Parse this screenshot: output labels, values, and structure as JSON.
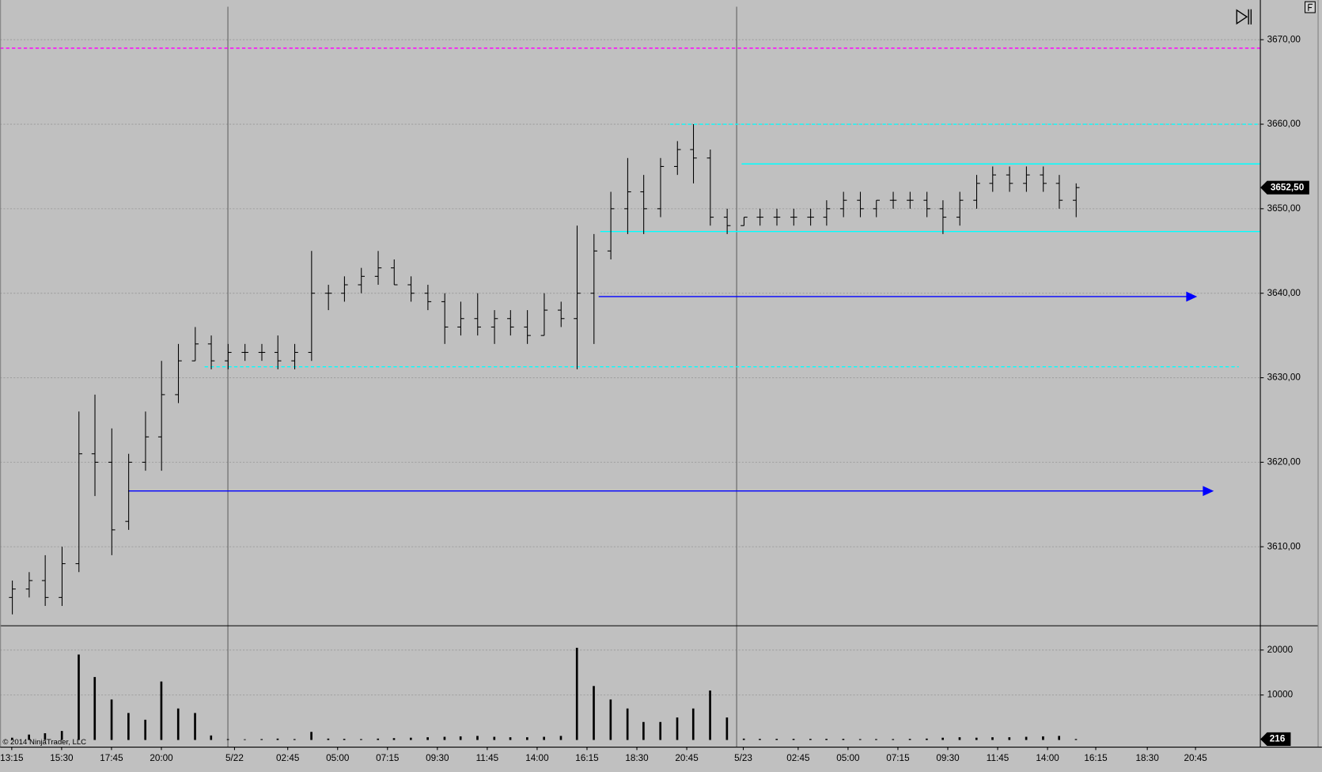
{
  "chart_data": {
    "type": "ohlc",
    "color": "#000000",
    "x": [
      0,
      1,
      2,
      3,
      4,
      5,
      6,
      7,
      8,
      9,
      10,
      11,
      12,
      13,
      14,
      15,
      16,
      17,
      18,
      19,
      20,
      21,
      22,
      23,
      24,
      25,
      26,
      27,
      28,
      29,
      30,
      31,
      32,
      33,
      34,
      35,
      36,
      37,
      38,
      39,
      40,
      41,
      42,
      43,
      44,
      45,
      46,
      47,
      48,
      49,
      50,
      51,
      52,
      53,
      54,
      55,
      56,
      57,
      58,
      59,
      60,
      61,
      62,
      63,
      64
    ],
    "open": [
      3604,
      3605,
      3606,
      3604,
      3608,
      3621,
      3620,
      3613,
      3620,
      3623,
      3628,
      3632,
      3634,
      3632,
      3633,
      3633,
      3633,
      3632,
      3633,
      3640,
      3640,
      3641,
      3642,
      3643,
      3641,
      3640,
      3639,
      3636,
      3637,
      3636,
      3637,
      3636,
      3635,
      3638,
      3637,
      3640,
      3645,
      3650,
      3652,
      3650,
      3655,
      3657,
      3656,
      3649,
      3648,
      3649,
      3649,
      3649,
      3649,
      3649,
      3650,
      3651,
      3650,
      3651,
      3651,
      3651,
      3650,
      3649,
      3651,
      3653,
      3654,
      3653,
      3654,
      3653,
      3651
    ],
    "high": [
      3606,
      3607,
      3609,
      3610,
      3626,
      3628,
      3624,
      3621,
      3626,
      3632,
      3634,
      3636,
      3635,
      3634,
      3634,
      3634,
      3635,
      3634,
      3645,
      3641,
      3642,
      3643,
      3645,
      3644,
      3642,
      3641,
      3640,
      3639,
      3640,
      3638,
      3638,
      3638,
      3640,
      3639,
      3648,
      3647,
      3652,
      3656,
      3654,
      3656,
      3658,
      3660,
      3657,
      3650,
      3649,
      3650,
      3650,
      3650,
      3650,
      3651,
      3652,
      3652,
      3651,
      3652,
      3652,
      3652,
      3651,
      3652,
      3654,
      3655,
      3655,
      3655,
      3655,
      3654,
      3653
    ],
    "low": [
      3602,
      3604,
      3603,
      3603,
      3607,
      3616,
      3609,
      3612,
      3619,
      3619,
      3627,
      3632,
      3631,
      3631,
      3632,
      3632,
      3631,
      3631,
      3632,
      3638,
      3639,
      3640,
      3641,
      3641,
      3639,
      3638,
      3634,
      3635,
      3635,
      3634,
      3635,
      3634,
      3635,
      3636,
      3631,
      3634,
      3644,
      3647,
      3647,
      3649,
      3654,
      3653,
      3648,
      3647,
      3648,
      3648,
      3648,
      3648,
      3648,
      3648,
      3649,
      3649,
      3649,
      3650,
      3650,
      3649,
      3647,
      3648,
      3650,
      3652,
      3652,
      3652,
      3652,
      3650,
      3649
    ],
    "close": [
      3605,
      3606,
      3604,
      3608,
      3621,
      3620,
      3612,
      3620,
      3623,
      3628,
      3632,
      3634,
      3632,
      3633,
      3633,
      3633,
      3632,
      3633,
      3640,
      3640,
      3641,
      3642,
      3643,
      3641,
      3640,
      3639,
      3636,
      3637,
      3636,
      3637,
      3636,
      3635,
      3638,
      3637,
      3640,
      3645,
      3650,
      3652,
      3650,
      3655,
      3657,
      3656,
      3649,
      3648,
      3649,
      3649,
      3649,
      3649,
      3649,
      3650,
      3651,
      3650,
      3651,
      3651,
      3651,
      3650,
      3649,
      3651,
      3653,
      3654,
      3653,
      3654,
      3653,
      3651,
      3652.5
    ],
    "xlim": [
      -0.7,
      75.1
    ],
    "ylim": [
      3600.7,
      3673.9
    ],
    "yticks": [
      {
        "value": 3610,
        "label": "3610,00"
      },
      {
        "value": 3620,
        "label": "3620,00"
      },
      {
        "value": 3630,
        "label": "3630,00"
      },
      {
        "value": 3640,
        "label": "3640,00"
      },
      {
        "value": 3650,
        "label": "3650,00"
      },
      {
        "value": 3660,
        "label": "3660,00"
      },
      {
        "value": 3670,
        "label": "3670,00"
      }
    ],
    "xticks": [
      {
        "value": 0,
        "label": "13:15"
      },
      {
        "value": 3,
        "label": "15:30"
      },
      {
        "value": 6,
        "label": "17:45"
      },
      {
        "value": 9,
        "label": "20:00"
      },
      {
        "value": 13.4,
        "label": "5/22"
      },
      {
        "value": 16.6,
        "label": "02:45"
      },
      {
        "value": 19.6,
        "label": "05:00"
      },
      {
        "value": 22.6,
        "label": "07:15"
      },
      {
        "value": 25.6,
        "label": "09:30"
      },
      {
        "value": 28.6,
        "label": "11:45"
      },
      {
        "value": 31.6,
        "label": "14:00"
      },
      {
        "value": 34.6,
        "label": "16:15"
      },
      {
        "value": 37.6,
        "label": "18:30"
      },
      {
        "value": 40.6,
        "label": "20:45"
      },
      {
        "value": 44.0,
        "label": "5/23"
      },
      {
        "value": 47.3,
        "label": "02:45"
      },
      {
        "value": 50.3,
        "label": "05:00"
      },
      {
        "value": 53.3,
        "label": "07:15"
      },
      {
        "value": 56.3,
        "label": "09:30"
      },
      {
        "value": 59.3,
        "label": "11:45"
      },
      {
        "value": 62.3,
        "label": "14:00"
      },
      {
        "value": 65.2,
        "label": "16:15"
      },
      {
        "value": 68.3,
        "label": "18:30"
      },
      {
        "value": 71.2,
        "label": "20:45"
      }
    ],
    "grid": true,
    "last_price": {
      "value": 3652.5,
      "label": "3652,50"
    },
    "session_breaks": [
      13.0,
      43.6
    ],
    "hlines": [
      {
        "value": 3669,
        "color": "#ff00ff",
        "dashed": true
      },
      {
        "value": 3660,
        "color": "#00ffff",
        "dashed": true,
        "from": 39.6
      },
      {
        "value": 3655.3,
        "color": "#00ffff",
        "dashed": false,
        "from": 43.9
      },
      {
        "value": 3647.3,
        "color": "#00ffff",
        "dashed": false,
        "from": 35.4
      },
      {
        "value": 3631.3,
        "color": "#00ffff",
        "dashed": true,
        "from": 11.6,
        "to": 73.8
      }
    ],
    "arrows": [
      {
        "value": 3639.6,
        "color": "#0000ff",
        "from": 35.3,
        "to": 71.3
      },
      {
        "value": 3616.6,
        "color": "#0000ff",
        "from": 7.0,
        "to": 72.3
      }
    ],
    "volume": {
      "type": "bar",
      "color": "#000000",
      "values": [
        500,
        1200,
        1500,
        2000,
        19000,
        14000,
        9000,
        6000,
        4500,
        13000,
        7000,
        6000,
        1000,
        200,
        150,
        200,
        300,
        200,
        1800,
        300,
        250,
        200,
        300,
        400,
        500,
        600,
        700,
        800,
        900,
        700,
        600,
        600,
        700,
        900,
        20500,
        12000,
        9000,
        7000,
        4000,
        4000,
        5000,
        7000,
        11000,
        5000,
        300,
        250,
        250,
        250,
        250,
        250,
        250,
        200,
        200,
        200,
        250,
        300,
        500,
        600,
        500,
        600,
        600,
        700,
        800,
        900,
        216
      ],
      "ylim": [
        -1500,
        25300
      ],
      "yticks": [
        10000,
        20000
      ]
    },
    "copyright": "© 2014 NinjaTrader, LLC"
  }
}
